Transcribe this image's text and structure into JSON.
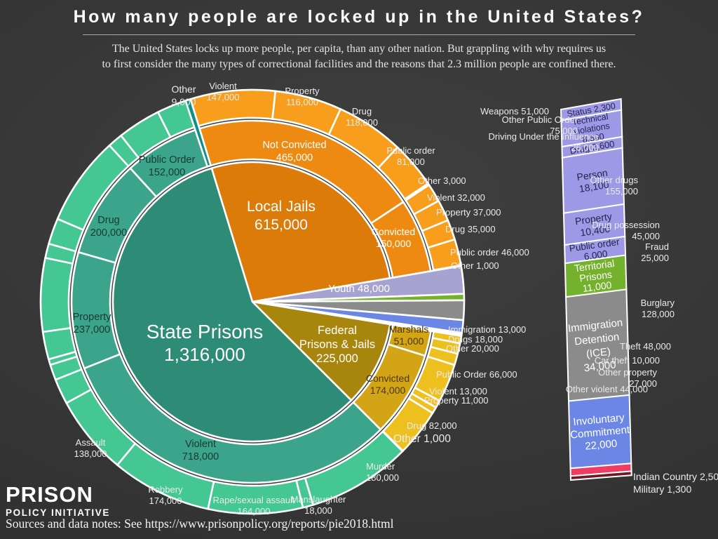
{
  "header": {
    "title": "How many people are locked up in the United States?",
    "subtitle_line1": "The United States locks up more people, per capita, than any other nation.  But grappling with why requires us",
    "subtitle_line2": "to first consider the many types of correctional facilities and the reasons that 2.3 million people are confined there."
  },
  "footer": {
    "logo_line1": "PRISON",
    "logo_line2": "POLICY INITIATIVE",
    "sources": "Sources and data notes: See https://www.prisonpolicy.org/reports/pie2018.html"
  },
  "chart_data": {
    "type": "sunburst",
    "title": "How many people are locked up in the United States?",
    "total_confined": "2.3 million",
    "units": "people",
    "legend_position": "none",
    "slices": [
      {
        "name": "Local Jails",
        "value": 615000,
        "color": "#DC7A0A",
        "children": [
          {
            "name": "Not Convicted",
            "value": 465000,
            "color": "#EE8A12",
            "children": [
              {
                "name": "Violent",
                "value": 147000,
                "color": "#F89E1C"
              },
              {
                "name": "Property",
                "value": 116000,
                "color": "#F89E1C"
              },
              {
                "name": "Drug",
                "value": 118000,
                "color": "#F89E1C"
              },
              {
                "name": "Public order",
                "value": 81000,
                "color": "#F89E1C"
              },
              {
                "name": "Other",
                "value": 3000,
                "color": "#F89E1C"
              }
            ]
          },
          {
            "name": "Convicted",
            "value": 150000,
            "color": "#EE8A12",
            "children": [
              {
                "name": "Violent",
                "value": 32000,
                "color": "#F89E1C"
              },
              {
                "name": "Property",
                "value": 37000,
                "color": "#F89E1C"
              },
              {
                "name": "Drug",
                "value": 35000,
                "color": "#F89E1C"
              },
              {
                "name": "Public order",
                "value": 46000,
                "color": "#F89E1C"
              },
              {
                "name": "Other",
                "value": 1000,
                "color": "#F89E1C"
              }
            ]
          }
        ]
      },
      {
        "name": "Youth",
        "value": 48000,
        "color": "#A7A3D1"
      },
      {
        "name": "Territorial Prisons",
        "value": 11000,
        "color": "#74B12C"
      },
      {
        "name": "Immigration Detention (ICE)",
        "value": 34000,
        "color": "#8B8B8B"
      },
      {
        "name": "Involuntary Commitment",
        "value": 22000,
        "color": "#6C86E6"
      },
      {
        "name": "Indian Country",
        "value": 2500,
        "color": "#EE3D64"
      },
      {
        "name": "Military",
        "value": 1300,
        "color": "#701A1E"
      },
      {
        "name": "Federal Prisons & Jails",
        "value": 225000,
        "color": "#A8860E",
        "children": [
          {
            "name": "Marshals",
            "value": 51000,
            "color": "#D2A416",
            "children": [
              {
                "name": "Immigration",
                "value": 13000,
                "color": "#EEC01F"
              },
              {
                "name": "Drugs",
                "value": 18000,
                "color": "#EEC01F"
              },
              {
                "name": "Other",
                "value": 20000,
                "color": "#EEC01F"
              }
            ]
          },
          {
            "name": "Convicted",
            "value": 174000,
            "color": "#D2A416",
            "children": [
              {
                "name": "Public Order",
                "value": 66000,
                "color": "#EEC01F"
              },
              {
                "name": "Violent",
                "value": 13000,
                "color": "#EEC01F"
              },
              {
                "name": "Property",
                "value": 11000,
                "color": "#EEC01F"
              },
              {
                "name": "Drug",
                "value": 82000,
                "color": "#EEC01F"
              },
              {
                "name": "Other",
                "value": 1000,
                "color": "#EEC01F"
              }
            ]
          }
        ]
      },
      {
        "name": "State Prisons",
        "value": 1316000,
        "color": "#2E8B76",
        "children": [
          {
            "name": "Violent",
            "value": 718000,
            "color": "#3BA48A",
            "children": [
              {
                "name": "Murder",
                "value": 180000,
                "color": "#44C793"
              },
              {
                "name": "Manslaughter",
                "value": 18000,
                "color": "#44C793"
              },
              {
                "name": "Rape/sexual assault",
                "value": 164000,
                "color": "#44C793"
              },
              {
                "name": "Robbery",
                "value": 174000,
                "color": "#44C793"
              },
              {
                "name": "Assault",
                "value": 138000,
                "color": "#44C793"
              },
              {
                "name": "Other violent",
                "value": 44000,
                "color": "#44C793"
              }
            ]
          },
          {
            "name": "Property",
            "value": 237000,
            "color": "#3BA48A",
            "children": [
              {
                "name": "Other property",
                "value": 27000,
                "color": "#44C793"
              },
              {
                "name": "Car theft",
                "value": 10000,
                "color": "#44C793"
              },
              {
                "name": "Theft",
                "value": 48000,
                "color": "#44C793"
              },
              {
                "name": "Burglary",
                "value": 128000,
                "color": "#44C793"
              },
              {
                "name": "Fraud",
                "value": 25000,
                "color": "#44C793"
              }
            ]
          },
          {
            "name": "Drug",
            "value": 200000,
            "color": "#3BA48A",
            "children": [
              {
                "name": "Drug possession",
                "value": 45000,
                "color": "#44C793"
              },
              {
                "name": "Other drugs",
                "value": 155000,
                "color": "#44C793"
              }
            ]
          },
          {
            "name": "Public Order",
            "value": 152000,
            "color": "#3BA48A",
            "children": [
              {
                "name": "Driving Under the Influence",
                "value": 26000,
                "color": "#44C793"
              },
              {
                "name": "Other Public Order",
                "value": 75000,
                "color": "#44C793"
              },
              {
                "name": "Weapons",
                "value": 51000,
                "color": "#44C793"
              }
            ]
          },
          {
            "name": "Other",
            "value": 9000,
            "color": "#0D9083"
          }
        ]
      }
    ],
    "bar": {
      "description": "Youth and other-facility breakdown bar",
      "segments": [
        {
          "id": "status",
          "name": "Status",
          "value": 2300,
          "color": "#9D99E6",
          "text_color": "#26244E",
          "label_lines": [
            "Status 2,300"
          ]
        },
        {
          "id": "technical",
          "name": "Technical violations",
          "value": 8600,
          "color": "#9D99E6",
          "text_color": "#26244E",
          "label_lines": [
            "Technical",
            "violations",
            "8,600"
          ]
        },
        {
          "id": "drug",
          "name": "Drug",
          "value": 2600,
          "color": "#9D99E6",
          "text_color": "#26244E",
          "label_lines": [
            "Drug 2,600"
          ]
        },
        {
          "id": "person",
          "name": "Person",
          "value": 18100,
          "color": "#9D99E6",
          "text_color": "#26244E",
          "label_lines": [
            "Person",
            "18,100"
          ]
        },
        {
          "id": "property",
          "name": "Property",
          "value": 10400,
          "color": "#9D99E6",
          "text_color": "#26244E",
          "label_lines": [
            "Property",
            "10,400"
          ]
        },
        {
          "id": "public-order",
          "name": "Public order",
          "value": 6000,
          "color": "#9D99E6",
          "text_color": "#26244E",
          "label_lines": [
            "Public order",
            "6,000"
          ]
        },
        {
          "id": "territorial",
          "name": "Territorial Prisons",
          "value": 11000,
          "color": "#74B12C",
          "text_color": "#FFFFFF",
          "label_lines": [
            "Territorial",
            "Prisons",
            "11,000"
          ]
        },
        {
          "id": "ice",
          "name": "Immigration Detention (ICE)",
          "value": 34000,
          "color": "#8B8B8B",
          "text_color": "#FFFFFF",
          "label_lines": [
            "Immigration",
            "Detention",
            "(ICE)",
            "34,000"
          ]
        },
        {
          "id": "involuntary",
          "name": "Involuntary Commitment",
          "value": 22000,
          "color": "#6C86E6",
          "text_color": "#FFFFFF",
          "label_lines": [
            "Involuntary",
            "Commitment",
            "22,000"
          ]
        },
        {
          "id": "indian-country",
          "name": "Indian Country",
          "value": 2500,
          "color": "#EE3D64",
          "text_color": "#FFFFFF",
          "label_lines": []
        },
        {
          "id": "military",
          "name": "Military",
          "value": 1300,
          "color": "#701A1E",
          "text_color": "#FFFFFF",
          "label_lines": []
        }
      ]
    },
    "inner_labels": [
      {
        "id": "state",
        "lines": [
          "State Prisons",
          "1,316,000"
        ]
      },
      {
        "id": "jails",
        "lines": [
          "Local Jails",
          "615,000"
        ]
      },
      {
        "id": "federal",
        "lines": [
          "Federal",
          "Prisons & Jails",
          "225,000"
        ]
      },
      {
        "id": "youth",
        "lines": [
          "Youth 48,000"
        ]
      },
      {
        "id": "jails_nc",
        "lines": [
          "Not Convicted",
          "465,000"
        ]
      },
      {
        "id": "jails_c",
        "lines": [
          "Convicted",
          "150,000"
        ]
      },
      {
        "id": "fed_marshals",
        "lines": [
          "Marshals",
          "51,000"
        ]
      },
      {
        "id": "fed_convicted",
        "lines": [
          "Convicted",
          "174,000"
        ]
      },
      {
        "id": "st_violent",
        "lines": [
          "Violent",
          "718,000"
        ]
      },
      {
        "id": "st_property",
        "lines": [
          "Property",
          "237,000"
        ]
      },
      {
        "id": "st_drug",
        "lines": [
          "Drug",
          "200,000"
        ]
      },
      {
        "id": "st_po",
        "lines": [
          "Public Order",
          "152,000"
        ]
      }
    ],
    "callouts": [
      {
        "id": "other9k",
        "lines": [
          "Other",
          "9,000"
        ]
      },
      {
        "id": "violent147k",
        "lines": [
          "Violent",
          "147,000"
        ]
      },
      {
        "id": "property116k",
        "lines": [
          "Property",
          "116,000"
        ]
      },
      {
        "id": "drug118k",
        "lines": [
          "Drug",
          "118,000"
        ]
      },
      {
        "id": "po81k",
        "lines": [
          "Public order",
          "81,000"
        ]
      },
      {
        "id": "other3k",
        "lines": [
          "Other 3,000"
        ]
      },
      {
        "id": "violent32k",
        "lines": [
          "Violent 32,000"
        ]
      },
      {
        "id": "property37k",
        "lines": [
          "Property 37,000"
        ]
      },
      {
        "id": "drug35k",
        "lines": [
          "Drug 35,000"
        ]
      },
      {
        "id": "po46k",
        "lines": [
          "Public order 46,000"
        ]
      },
      {
        "id": "other1k-jails",
        "lines": [
          "Other 1,000"
        ]
      },
      {
        "id": "weapons51k",
        "lines": [
          "Weapons  51,000"
        ]
      },
      {
        "id": "opo75k",
        "lines": [
          "Other Public Order",
          "75,000"
        ]
      },
      {
        "id": "dui26k",
        "lines": [
          "Driving Under the Influence",
          "26,000"
        ]
      },
      {
        "id": "otherdrugs155k",
        "lines": [
          "Other drugs",
          "155,000"
        ]
      },
      {
        "id": "drugpossession45k",
        "lines": [
          "Drug possession",
          "45,000"
        ]
      },
      {
        "id": "fraud25k",
        "lines": [
          "Fraud",
          "25,000"
        ]
      },
      {
        "id": "burglary128k",
        "lines": [
          "Burglary",
          "128,000"
        ]
      },
      {
        "id": "theft48k",
        "lines": [
          "Theft 48,000"
        ]
      },
      {
        "id": "cartheft10k",
        "lines": [
          "Car theft 10,000"
        ]
      },
      {
        "id": "otherproperty27k",
        "lines": [
          "Other property",
          "27,000"
        ]
      },
      {
        "id": "otherviolent44k",
        "lines": [
          "Other violent 44,000"
        ]
      },
      {
        "id": "assault138k",
        "lines": [
          "Assault",
          "138,000"
        ]
      },
      {
        "id": "robbery174k",
        "lines": [
          "Robbery",
          "174,000"
        ]
      },
      {
        "id": "rape164k",
        "lines": [
          "Rape/sexual assault",
          "164,000"
        ]
      },
      {
        "id": "manslaughter18k",
        "lines": [
          "Manslaughter",
          "18,000"
        ]
      },
      {
        "id": "murder180k",
        "lines": [
          "Murder",
          "180,000"
        ]
      },
      {
        "id": "other1k-state",
        "lines": [
          "Other 1,000"
        ]
      },
      {
        "id": "drug82k",
        "lines": [
          "Drug 82,000"
        ]
      },
      {
        "id": "property11k",
        "lines": [
          "Property 11,000"
        ]
      },
      {
        "id": "violent13k",
        "lines": [
          "Violent 13,000"
        ]
      },
      {
        "id": "po66k",
        "lines": [
          "Public Order 66,000"
        ]
      },
      {
        "id": "other20k",
        "lines": [
          "Other 20,000"
        ]
      },
      {
        "id": "drugs18k",
        "lines": [
          "Drugs 18,000"
        ]
      },
      {
        "id": "immigration13k",
        "lines": [
          "Immigration 13,000"
        ]
      },
      {
        "id": "indiancountry2500",
        "lines": [
          "Indian Country 2,500"
        ]
      },
      {
        "id": "military1300",
        "lines": [
          "Military 1,300"
        ]
      }
    ]
  }
}
